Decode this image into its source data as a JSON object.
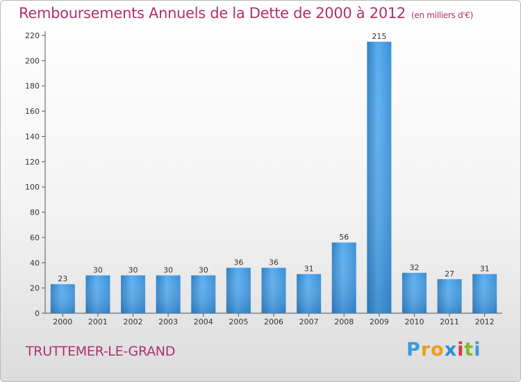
{
  "header": {
    "title": "Remboursements Annuels de la Dette de 2000 à 2012",
    "unit": "(en milliers d'€)"
  },
  "footer": {
    "commune": "TRUTTEMER-LE-GRAND",
    "logo_letters": [
      "P",
      "r",
      "o",
      "x",
      "i",
      "t",
      "i"
    ],
    "logo_colors": [
      "#3a9bd9",
      "#e8a020",
      "#f39c12",
      "#2a8fd6",
      "#d63a3a",
      "#7bbf2a",
      "#3a9bd9"
    ]
  },
  "chart_data": {
    "type": "bar",
    "title": "Remboursements Annuels de la Dette de 2000 à 2012",
    "xlabel": "",
    "ylabel": "",
    "categories": [
      "2000",
      "2001",
      "2002",
      "2003",
      "2004",
      "2005",
      "2006",
      "2007",
      "2008",
      "2009",
      "2010",
      "2011",
      "2012"
    ],
    "values": [
      23,
      30,
      30,
      30,
      30,
      36,
      36,
      31,
      56,
      215,
      32,
      27,
      31
    ],
    "ylim": [
      0,
      220
    ],
    "yticks": [
      0,
      20,
      40,
      60,
      80,
      100,
      120,
      140,
      160,
      180,
      200,
      220
    ],
    "grid": false,
    "bar_color": "#4aa3e6"
  }
}
